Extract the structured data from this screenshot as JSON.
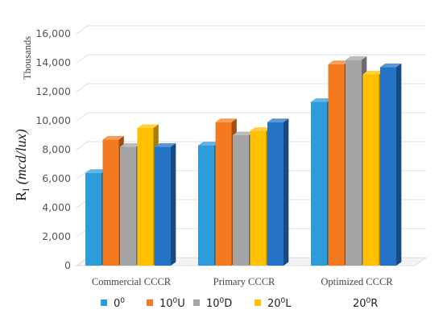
{
  "chart_data": {
    "type": "bar",
    "categories": [
      "Commercial CCCR",
      "Primary CCCR",
      "Optimized CCCR"
    ],
    "series": [
      {
        "name": "0^0",
        "name_base": "0",
        "name_sup": "0",
        "name_suffix": "",
        "color": "#2E9BDA",
        "values": [
          6400,
          8300,
          11300
        ]
      },
      {
        "name": "10^0U",
        "name_base": "10",
        "name_sup": "0",
        "name_suffix": "U",
        "color": "#F47A20",
        "values": [
          8700,
          9900,
          13900
        ]
      },
      {
        "name": "10^0D",
        "name_base": "10",
        "name_sup": "0",
        "name_suffix": "D",
        "color": "#A5A5A5",
        "values": [
          8200,
          9000,
          14200
        ]
      },
      {
        "name": "20^0L",
        "name_base": "20",
        "name_sup": "0",
        "name_suffix": "L",
        "color": "#FFC000",
        "values": [
          9500,
          9300,
          13200
        ]
      },
      {
        "name": "20^0R",
        "name_base": "20",
        "name_sup": "0",
        "name_suffix": "R",
        "color": "#2372C6",
        "values": [
          8200,
          9900,
          13700
        ]
      }
    ],
    "ylim": [
      0,
      16000
    ],
    "yticks": [
      0,
      2000,
      4000,
      6000,
      8000,
      10000,
      12000,
      14000,
      16000
    ],
    "ytick_labels": [
      "0",
      "2,000",
      "4,000",
      "6,000",
      "8,000",
      "10,000",
      "12,000",
      "14,000",
      "16,000"
    ],
    "ylabel_main": "R",
    "ylabel_sub": "I",
    "ylabel_unit": "(mcd/lux)",
    "unit_label": "Thousands",
    "grid": true,
    "legend_position": "bottom"
  }
}
